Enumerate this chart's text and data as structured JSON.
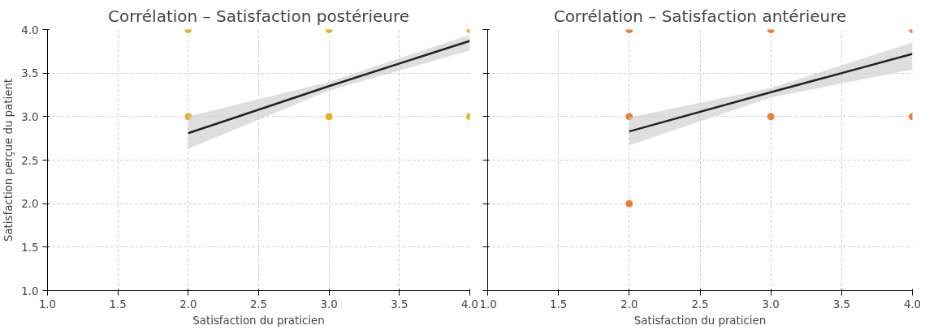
{
  "chart_data": [
    {
      "type": "scatter",
      "title": "Corrélation – Satisfaction postérieure",
      "xlabel": "Satisfaction du praticien",
      "ylabel": "Satisfaction perçue du patient",
      "xlim": [
        1.0,
        4.0
      ],
      "ylim": [
        1.0,
        4.0
      ],
      "xticks": [
        {
          "value": 1,
          "label": "1.0"
        },
        {
          "value": 1.5,
          "label": "1.5"
        },
        {
          "value": 2,
          "label": "2.0"
        },
        {
          "value": 2.5,
          "label": "2.5"
        },
        {
          "value": 3,
          "label": "3.0"
        },
        {
          "value": 3.5,
          "label": "3.5"
        },
        {
          "value": 4,
          "label": "4.0"
        }
      ],
      "yticks": [
        {
          "value": 1,
          "label": "1.0"
        },
        {
          "value": 1.5,
          "label": "1.5"
        },
        {
          "value": 2,
          "label": "2.0"
        },
        {
          "value": 2.5,
          "label": "2.5"
        },
        {
          "value": 3,
          "label": "3.0"
        },
        {
          "value": 3.5,
          "label": "3.5"
        },
        {
          "value": 4,
          "label": "4.0"
        }
      ],
      "grid": true,
      "series": [
        {
          "marker": "circle",
          "color": "#e8b020",
          "x": [
            2,
            2,
            3,
            3,
            4,
            4
          ],
          "values": [
            4,
            3,
            4,
            3,
            4,
            3
          ]
        },
        {
          "type": "line",
          "color": "#222222",
          "x": [
            2,
            3,
            4
          ],
          "values": [
            2.81,
            3.35,
            3.87
          ],
          "lower": [
            2.63,
            3.3,
            3.76
          ],
          "upper": [
            3.0,
            3.4,
            3.94
          ]
        }
      ]
    },
    {
      "type": "scatter",
      "title": "Corrélation – Satisfaction antérieure",
      "xlabel": "Satisfaction du praticien",
      "xlim": [
        1.0,
        4.0
      ],
      "ylim": [
        1.0,
        4.0
      ],
      "xticks": [
        {
          "value": 1,
          "label": "1.0"
        },
        {
          "value": 1.5,
          "label": "1.5"
        },
        {
          "value": 2,
          "label": "2.0"
        },
        {
          "value": 2.5,
          "label": "2.5"
        },
        {
          "value": 3,
          "label": "3.0"
        },
        {
          "value": 3.5,
          "label": "3.5"
        },
        {
          "value": 4,
          "label": "4.0"
        }
      ],
      "yticks": [
        1,
        1.5,
        2,
        2.5,
        3,
        3.5,
        4
      ],
      "tick_labels": "x",
      "grid": true,
      "series": [
        {
          "marker": "circle",
          "color": "#ec7d35",
          "x": [
            2,
            2,
            2,
            3,
            3,
            4,
            4
          ],
          "values": [
            4,
            3,
            2,
            4,
            3,
            4,
            3
          ]
        },
        {
          "type": "line",
          "color": "#222222",
          "x": [
            2,
            3,
            4
          ],
          "values": [
            2.83,
            3.28,
            3.72
          ],
          "lower": [
            2.67,
            3.22,
            3.54
          ],
          "upper": [
            2.99,
            3.33,
            3.85
          ]
        }
      ]
    }
  ]
}
